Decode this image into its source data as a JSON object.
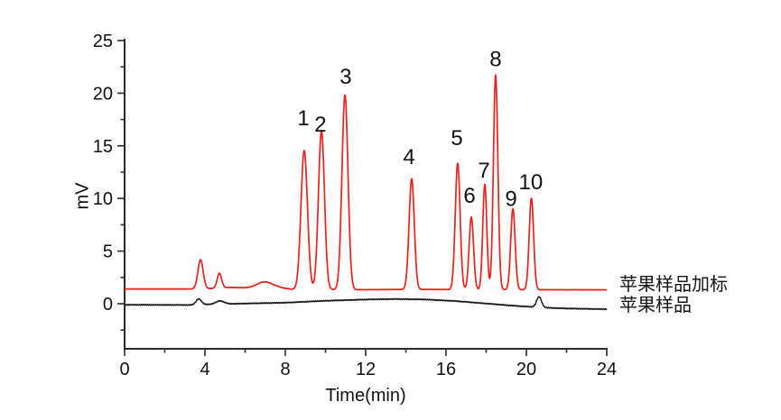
{
  "chart_data": {
    "type": "line",
    "title": "",
    "xlabel": "Time(min)",
    "ylabel": "mV",
    "xlim": [
      0,
      24
    ],
    "ylim": [
      -4.3,
      25
    ],
    "x_major_ticks": [
      0,
      4,
      8,
      12,
      16,
      20,
      24
    ],
    "x_minor_ticks": [
      2,
      6,
      10,
      14,
      18,
      22
    ],
    "y_major_ticks": [
      0,
      5,
      10,
      15,
      20,
      25
    ],
    "y_minor_ticks": [
      -2.5,
      2.5,
      7.5,
      12.5,
      17.5,
      22.5
    ],
    "axis_color": "#2b2b2b",
    "tick_label_color": "#111111",
    "legend_position": "right-of-plot",
    "grid": false,
    "series": [
      {
        "name": "苹果样品加标",
        "color": "#e8231d",
        "noise": 0.02,
        "baseline": [
          [
            0,
            1.4
          ],
          [
            3.2,
            1.4
          ],
          [
            4.3,
            1.45
          ],
          [
            5.2,
            1.55
          ],
          [
            6.2,
            1.5
          ],
          [
            7.6,
            1.55
          ],
          [
            8.3,
            1.38
          ],
          [
            11.5,
            1.33
          ],
          [
            14,
            1.36
          ],
          [
            21,
            1.33
          ],
          [
            24,
            1.32
          ]
        ],
        "peaks": [
          {
            "t": 3.78,
            "h": 2.75,
            "sigma": 0.13
          },
          {
            "t": 4.72,
            "h": 1.4,
            "sigma": 0.11
          },
          {
            "t": 6.97,
            "h": 0.55,
            "sigma": 0.38
          },
          {
            "t": 8.94,
            "h": 13.2,
            "sigma": 0.16
          },
          {
            "t": 9.8,
            "h": 15.1,
            "sigma": 0.15
          },
          {
            "t": 10.97,
            "h": 18.5,
            "sigma": 0.15
          },
          {
            "t": 14.29,
            "h": 10.5,
            "sigma": 0.13
          },
          {
            "t": 16.58,
            "h": 12.0,
            "sigma": 0.12
          },
          {
            "t": 17.26,
            "h": 6.9,
            "sigma": 0.11
          },
          {
            "t": 17.93,
            "h": 10.0,
            "sigma": 0.1
          },
          {
            "t": 18.47,
            "h": 20.4,
            "sigma": 0.11
          },
          {
            "t": 19.33,
            "h": 7.7,
            "sigma": 0.11
          },
          {
            "t": 20.25,
            "h": 8.7,
            "sigma": 0.11
          }
        ]
      },
      {
        "name": "苹果样品",
        "color": "#151515",
        "noise": 0.05,
        "baseline": [
          [
            0,
            -0.1
          ],
          [
            3.2,
            -0.12
          ],
          [
            4.3,
            -0.05
          ],
          [
            6,
            0.02
          ],
          [
            8,
            0.1
          ],
          [
            10,
            0.28
          ],
          [
            12,
            0.4
          ],
          [
            13.5,
            0.45
          ],
          [
            15,
            0.4
          ],
          [
            16.5,
            0.25
          ],
          [
            18,
            0.02
          ],
          [
            19.3,
            -0.18
          ],
          [
            20.1,
            -0.28
          ],
          [
            21,
            -0.38
          ],
          [
            22,
            -0.45
          ],
          [
            24,
            -0.52
          ]
        ],
        "peaks": [
          {
            "t": 3.69,
            "h": 0.55,
            "sigma": 0.13
          },
          {
            "t": 4.75,
            "h": 0.3,
            "sigma": 0.2
          },
          {
            "t": 20.63,
            "h": 1.0,
            "sigma": 0.12
          }
        ]
      }
    ],
    "peak_labels": [
      {
        "text": "1",
        "t": 8.9,
        "mv": 17.7
      },
      {
        "text": "2",
        "t": 9.75,
        "mv": 17.1
      },
      {
        "text": "3",
        "t": 11.01,
        "mv": 21.6
      },
      {
        "text": "4",
        "t": 14.16,
        "mv": 14.0
      },
      {
        "text": "5",
        "t": 16.54,
        "mv": 15.8
      },
      {
        "text": "6",
        "t": 17.17,
        "mv": 10.3
      },
      {
        "text": "7",
        "t": 17.89,
        "mv": 12.7
      },
      {
        "text": "8",
        "t": 18.47,
        "mv": 23.3
      },
      {
        "text": "9",
        "t": 19.24,
        "mv": 10.0
      },
      {
        "text": "10",
        "t": 20.22,
        "mv": 11.6
      }
    ]
  },
  "legend": {
    "line1": "苹果样品加标",
    "line2": "苹果样品"
  }
}
